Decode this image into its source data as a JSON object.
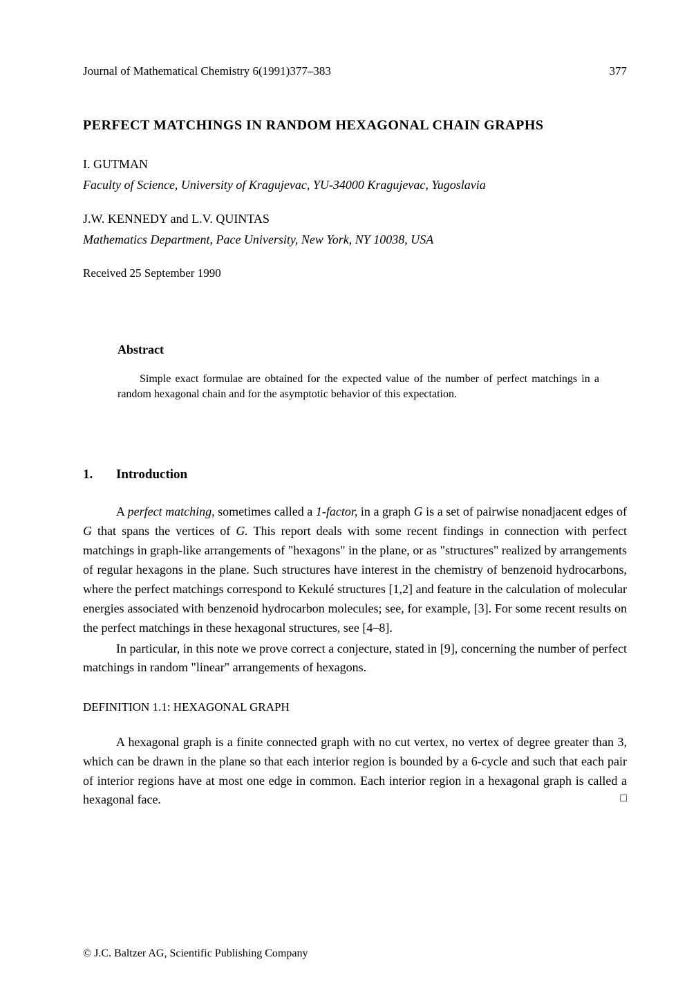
{
  "header": {
    "journal_info": "Journal of Mathematical Chemistry 6(1991)377–383",
    "page_number": "377"
  },
  "title": "PERFECT MATCHINGS IN RANDOM HEXAGONAL CHAIN GRAPHS",
  "authors": [
    {
      "name": "I. GUTMAN",
      "affiliation": "Faculty of Science, University of Kragujevac, YU-34000 Kragujevac, Yugoslavia"
    },
    {
      "name": "J.W. KENNEDY and L.V. QUINTAS",
      "affiliation": "Mathematics Department, Pace University, New York, NY 10038, USA"
    }
  ],
  "received": "Received 25 September 1990",
  "abstract": {
    "heading": "Abstract",
    "text": "Simple exact formulae are obtained for the expected value of the number of perfect matchings in a random hexagonal chain and for the asymptotic behavior of this expectation."
  },
  "section": {
    "number": "1.",
    "title": "Introduction"
  },
  "intro_para1_pre": "A ",
  "intro_para1_em1": "perfect matching,",
  "intro_para1_mid1": " sometimes called a ",
  "intro_para1_em2": "1-factor,",
  "intro_para1_mid2": " in a graph ",
  "intro_para1_em3": "G",
  "intro_para1_mid3": " is a set of pairwise nonadjacent edges of ",
  "intro_para1_em4": "G",
  "intro_para1_mid4": " that spans the vertices of ",
  "intro_para1_em5": "G.",
  "intro_para1_rest": " This report deals with some recent findings in connection with perfect matchings in graph-like arrangements of \"hexagons\" in the plane, or as \"structures\" realized by arrangements of regular hexagons in the plane. Such structures have interest in the chemistry of benzenoid hydrocarbons, where the perfect matchings correspond to Kekulé structures [1,2] and feature in the calculation of molecular energies associated with benzenoid hydrocarbon molecules; see, for example, [3]. For some recent results on the perfect matchings in these hexagonal structures, see [4–8].",
  "intro_para2": "In particular, in this note we prove correct a conjecture, stated in [9], concerning the number of perfect matchings in random \"linear\" arrangements of hexagons.",
  "definition": {
    "heading": "DEFINITION 1.1: HEXAGONAL GRAPH",
    "text": "A hexagonal graph is a finite connected graph with no cut vertex, no vertex of degree greater than 3, which can be drawn in the plane so that each interior region is bounded by a 6-cycle and such that each pair of interior regions have at most one edge in common. Each interior region in a hexagonal graph is called a hexagonal face.",
    "qed": "□"
  },
  "footer": "© J.C. Baltzer AG, Scientific Publishing Company"
}
